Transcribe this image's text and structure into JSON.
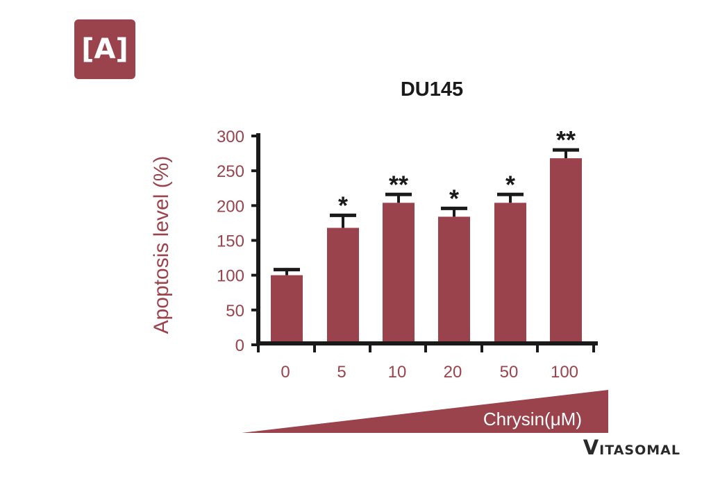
{
  "panel_label": "[A]",
  "brand": {
    "first": "V",
    "rest": "ITASOMAL"
  },
  "colors": {
    "bar": "#9b434c",
    "text": "#9b434c",
    "axis": "#1a1a1a",
    "title": "#1a1a1a"
  },
  "chart_data": {
    "type": "bar",
    "title": "DU145",
    "xlabel": "Chrysin(μM)",
    "ylabel": "Apoptosis level (%)",
    "ylim": [
      0,
      300
    ],
    "yticks": [
      0,
      50,
      100,
      150,
      200,
      250,
      300
    ],
    "categories": [
      "0",
      "5",
      "10",
      "20",
      "50",
      "100"
    ],
    "values": [
      100,
      168,
      204,
      184,
      204,
      268
    ],
    "errors": [
      8,
      18,
      12,
      12,
      12,
      12
    ],
    "significance": [
      "",
      "*",
      "**",
      "*",
      "*",
      "**"
    ],
    "grid": false
  }
}
